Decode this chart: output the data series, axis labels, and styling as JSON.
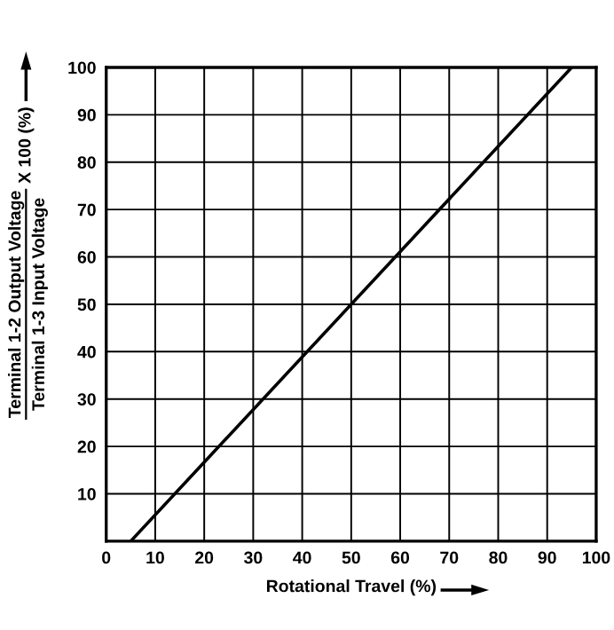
{
  "chart_data": {
    "type": "line",
    "xlabel": "Rotational Travel (%)",
    "ylabel": "Terminal 1-2 Output Voltage\nTerminal 1-3 Input Voltage",
    "annotations": [
      "X 100 (%)"
    ],
    "series": [
      {
        "color": "#000000",
        "x": [
          5,
          95
        ],
        "values": [
          0,
          100
        ]
      }
    ],
    "xlim": [
      0,
      100
    ],
    "ylim": [
      0,
      100
    ],
    "xticks": [
      0,
      10,
      20,
      30,
      40,
      50,
      60,
      70,
      80,
      90,
      100
    ],
    "yticks": [
      {
        "value": 0,
        "label": null
      },
      10,
      20,
      30,
      40,
      50,
      60,
      70,
      80,
      90,
      100
    ],
    "grid": true,
    "legend": false,
    "marker": "none",
    "line_style": "solid"
  }
}
